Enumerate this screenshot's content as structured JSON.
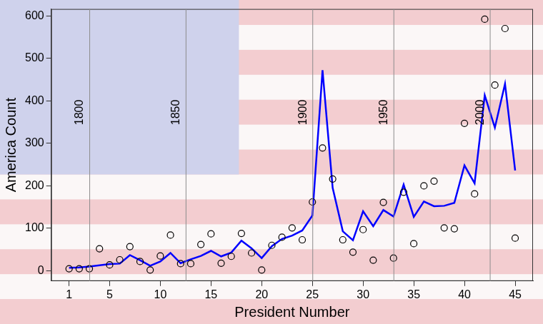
{
  "chart_data": {
    "type": "line",
    "x_label": "President Number",
    "y_label": "America Count",
    "x": [
      1,
      2,
      3,
      4,
      5,
      6,
      7,
      8,
      9,
      10,
      11,
      12,
      13,
      14,
      15,
      16,
      17,
      18,
      19,
      20,
      21,
      22,
      23,
      24,
      25,
      26,
      27,
      28,
      29,
      30,
      31,
      32,
      33,
      34,
      35,
      36,
      37,
      38,
      39,
      40,
      41,
      42,
      43,
      44,
      45
    ],
    "series": [
      {
        "type": "scatter",
        "color": "#000000",
        "marker": "circle",
        "values": [
          5,
          5,
          5,
          52,
          14,
          26,
          57,
          22,
          2,
          35,
          84,
          17,
          17,
          62,
          87,
          18,
          34,
          88,
          42,
          2,
          60,
          79,
          101,
          73,
          162,
          289,
          216,
          73,
          44,
          97,
          25,
          161,
          30,
          185,
          64,
          200,
          211,
          101,
          99,
          347,
          181,
          592,
          437,
          570,
          77
        ]
      },
      {
        "type": "line",
        "color": "#0000ff",
        "line_style": "solid",
        "values": [
          7,
          8,
          10,
          13,
          16,
          17,
          37,
          25,
          12,
          22,
          42,
          18,
          27,
          35,
          47,
          34,
          43,
          71,
          53,
          30,
          58,
          75,
          83,
          95,
          130,
          472,
          195,
          93,
          72,
          140,
          105,
          143,
          128,
          203,
          127,
          163,
          152,
          153,
          160,
          248,
          206,
          413,
          337,
          440,
          236
        ]
      }
    ],
    "annotations": [
      {
        "x": 3,
        "label": "1800"
      },
      {
        "x": 12.5,
        "label": "1850"
      },
      {
        "x": 25,
        "label": "1900"
      },
      {
        "x": 33,
        "label": "1950"
      },
      {
        "x": 42.5,
        "label": "2000"
      }
    ],
    "xlim": [
      -0.76,
      46.76
    ],
    "xticks": [
      1,
      5,
      10,
      15,
      20,
      25,
      30,
      35,
      40,
      45
    ],
    "ylim": [
      -24,
      616
    ],
    "yticks": [
      0,
      100,
      200,
      300,
      400,
      500,
      600
    ],
    "grid": false
  }
}
